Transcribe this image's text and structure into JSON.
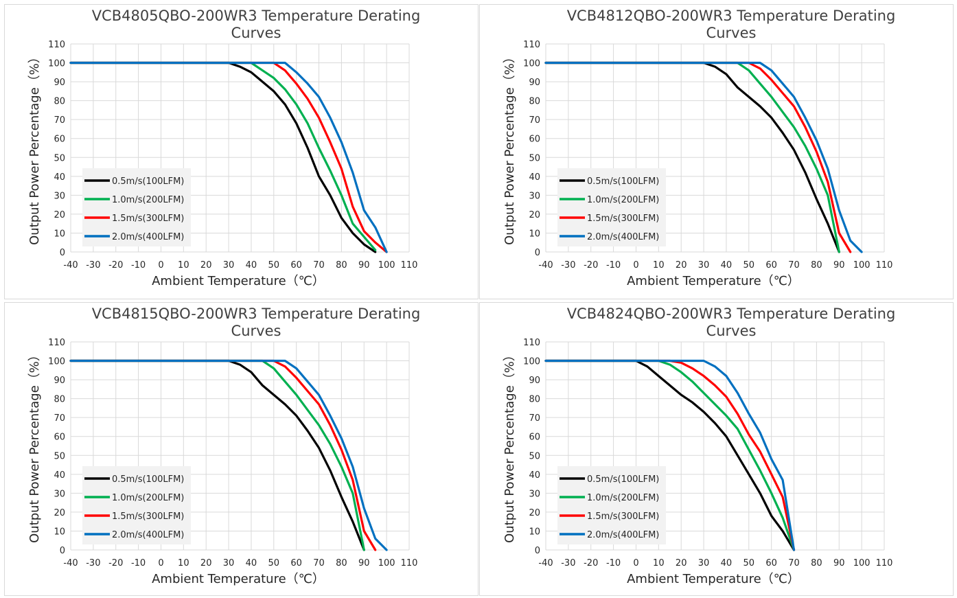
{
  "chart_data": [
    {
      "type": "line",
      "title": "VCB4805QBO-200WR3 Temperature Derating Curves",
      "xlabel": "Ambient Temperature（℃）",
      "ylabel": "Output Power Percentage（%）",
      "xlim": [
        -40,
        110
      ],
      "ylim": [
        0,
        110
      ],
      "xticks": [
        "-40",
        "-30",
        "-20",
        "-10",
        "0",
        "10",
        "20",
        "30",
        "40",
        "50",
        "60",
        "70",
        "80",
        "90",
        "100",
        "110"
      ],
      "yticks": [
        "0",
        "10",
        "20",
        "30",
        "40",
        "50",
        "60",
        "70",
        "80",
        "90",
        "100",
        "110"
      ],
      "grid": true,
      "legend_position": "bottom-left",
      "series": [
        {
          "name": "0.5m/s(100LFM)",
          "color": "#000000",
          "points": [
            [
              -40,
              100
            ],
            [
              25,
              100
            ],
            [
              30,
              100
            ],
            [
              35,
              98
            ],
            [
              40,
              95
            ],
            [
              45,
              90
            ],
            [
              50,
              85
            ],
            [
              55,
              78
            ],
            [
              60,
              68
            ],
            [
              65,
              55
            ],
            [
              70,
              40
            ],
            [
              75,
              30
            ],
            [
              80,
              18
            ],
            [
              85,
              10
            ],
            [
              90,
              4
            ],
            [
              95,
              0
            ]
          ]
        },
        {
          "name": "1.0m/s(200LFM)",
          "color": "#00b050",
          "points": [
            [
              -40,
              100
            ],
            [
              35,
              100
            ],
            [
              40,
              100
            ],
            [
              45,
              96
            ],
            [
              50,
              92
            ],
            [
              55,
              86
            ],
            [
              60,
              78
            ],
            [
              65,
              68
            ],
            [
              70,
              55
            ],
            [
              75,
              43
            ],
            [
              80,
              30
            ],
            [
              85,
              15
            ],
            [
              90,
              8
            ],
            [
              95,
              1
            ]
          ]
        },
        {
          "name": "1.5m/s(300LFM)",
          "color": "#ff0000",
          "points": [
            [
              -40,
              100
            ],
            [
              45,
              100
            ],
            [
              50,
              100
            ],
            [
              55,
              96
            ],
            [
              60,
              89
            ],
            [
              65,
              81
            ],
            [
              70,
              71
            ],
            [
              75,
              58
            ],
            [
              80,
              44
            ],
            [
              85,
              24
            ],
            [
              90,
              11
            ],
            [
              95,
              5
            ],
            [
              100,
              0
            ]
          ]
        },
        {
          "name": "2.0m/s(400LFM)",
          "color": "#0070c0",
          "points": [
            [
              -40,
              100
            ],
            [
              50,
              100
            ],
            [
              55,
              100
            ],
            [
              60,
              95
            ],
            [
              65,
              89
            ],
            [
              70,
              82
            ],
            [
              75,
              71
            ],
            [
              80,
              58
            ],
            [
              85,
              42
            ],
            [
              90,
              22
            ],
            [
              95,
              13
            ],
            [
              100,
              0
            ]
          ]
        }
      ]
    },
    {
      "type": "line",
      "title": "VCB4812QBO-200WR3 Temperature Derating Curves",
      "xlabel": "Ambient Temperature（℃）",
      "ylabel": "Output Power Percentage（%）",
      "xlim": [
        -40,
        110
      ],
      "ylim": [
        0,
        110
      ],
      "xticks": [
        "-40",
        "-30",
        "-20",
        "-10",
        "0",
        "10",
        "20",
        "30",
        "40",
        "50",
        "60",
        "70",
        "80",
        "90",
        "100",
        "110"
      ],
      "yticks": [
        "0",
        "10",
        "20",
        "30",
        "40",
        "50",
        "60",
        "70",
        "80",
        "90",
        "100",
        "110"
      ],
      "grid": true,
      "legend_position": "bottom-left",
      "series": [
        {
          "name": "0.5m/s(100LFM)",
          "color": "#000000",
          "points": [
            [
              -40,
              100
            ],
            [
              25,
              100
            ],
            [
              30,
              100
            ],
            [
              35,
              98
            ],
            [
              40,
              94
            ],
            [
              45,
              87
            ],
            [
              50,
              82
            ],
            [
              55,
              77
            ],
            [
              60,
              71
            ],
            [
              65,
              63
            ],
            [
              70,
              54
            ],
            [
              75,
              42
            ],
            [
              80,
              28
            ],
            [
              85,
              15
            ],
            [
              90,
              0
            ]
          ]
        },
        {
          "name": "1.0m/s(200LFM)",
          "color": "#00b050",
          "points": [
            [
              -40,
              100
            ],
            [
              40,
              100
            ],
            [
              45,
              100
            ],
            [
              50,
              96
            ],
            [
              55,
              89
            ],
            [
              60,
              82
            ],
            [
              65,
              74
            ],
            [
              70,
              66
            ],
            [
              75,
              56
            ],
            [
              80,
              44
            ],
            [
              85,
              30
            ],
            [
              90,
              0
            ]
          ]
        },
        {
          "name": "1.5m/s(300LFM)",
          "color": "#ff0000",
          "points": [
            [
              -40,
              100
            ],
            [
              45,
              100
            ],
            [
              50,
              100
            ],
            [
              55,
              97
            ],
            [
              60,
              91
            ],
            [
              65,
              84
            ],
            [
              70,
              77
            ],
            [
              75,
              66
            ],
            [
              80,
              53
            ],
            [
              85,
              37
            ],
            [
              90,
              10
            ],
            [
              95,
              0
            ]
          ]
        },
        {
          "name": "2.0m/s(400LFM)",
          "color": "#0070c0",
          "points": [
            [
              -40,
              100
            ],
            [
              50,
              100
            ],
            [
              55,
              100
            ],
            [
              60,
              96
            ],
            [
              65,
              89
            ],
            [
              70,
              82
            ],
            [
              75,
              71
            ],
            [
              80,
              59
            ],
            [
              85,
              44
            ],
            [
              90,
              22
            ],
            [
              95,
              6
            ],
            [
              100,
              0
            ]
          ]
        }
      ]
    },
    {
      "type": "line",
      "title": "VCB4815QBO-200WR3 Temperature Derating Curves",
      "xlabel": "Ambient Temperature（℃）",
      "ylabel": "Output Power Percentage（%）",
      "xlim": [
        -40,
        110
      ],
      "ylim": [
        0,
        110
      ],
      "xticks": [
        "-40",
        "-30",
        "-20",
        "-10",
        "0",
        "10",
        "20",
        "30",
        "40",
        "50",
        "60",
        "70",
        "80",
        "90",
        "100",
        "110"
      ],
      "yticks": [
        "0",
        "10",
        "20",
        "30",
        "40",
        "50",
        "60",
        "70",
        "80",
        "90",
        "100",
        "110"
      ],
      "grid": true,
      "legend_position": "bottom-left",
      "series": [
        {
          "name": "0.5m/s(100LFM)",
          "color": "#000000",
          "points": [
            [
              -40,
              100
            ],
            [
              25,
              100
            ],
            [
              30,
              100
            ],
            [
              35,
              98
            ],
            [
              40,
              94
            ],
            [
              45,
              87
            ],
            [
              50,
              82
            ],
            [
              55,
              77
            ],
            [
              60,
              71
            ],
            [
              65,
              63
            ],
            [
              70,
              54
            ],
            [
              75,
              42
            ],
            [
              80,
              28
            ],
            [
              85,
              15
            ],
            [
              90,
              0
            ]
          ]
        },
        {
          "name": "1.0m/s(200LFM)",
          "color": "#00b050",
          "points": [
            [
              -40,
              100
            ],
            [
              40,
              100
            ],
            [
              45,
              100
            ],
            [
              50,
              96
            ],
            [
              55,
              89
            ],
            [
              60,
              82
            ],
            [
              65,
              74
            ],
            [
              70,
              66
            ],
            [
              75,
              56
            ],
            [
              80,
              44
            ],
            [
              85,
              30
            ],
            [
              90,
              0
            ]
          ]
        },
        {
          "name": "1.5m/s(300LFM)",
          "color": "#ff0000",
          "points": [
            [
              -40,
              100
            ],
            [
              45,
              100
            ],
            [
              50,
              100
            ],
            [
              55,
              97
            ],
            [
              60,
              91
            ],
            [
              65,
              84
            ],
            [
              70,
              77
            ],
            [
              75,
              66
            ],
            [
              80,
              53
            ],
            [
              85,
              37
            ],
            [
              90,
              10
            ],
            [
              95,
              0
            ]
          ]
        },
        {
          "name": "2.0m/s(400LFM)",
          "color": "#0070c0",
          "points": [
            [
              -40,
              100
            ],
            [
              50,
              100
            ],
            [
              55,
              100
            ],
            [
              60,
              96
            ],
            [
              65,
              89
            ],
            [
              70,
              82
            ],
            [
              75,
              71
            ],
            [
              80,
              59
            ],
            [
              85,
              44
            ],
            [
              90,
              22
            ],
            [
              95,
              6
            ],
            [
              100,
              0
            ]
          ]
        }
      ]
    },
    {
      "type": "line",
      "title": "VCB4824QBO-200WR3 Temperature Derating Curves",
      "xlabel": "Ambient Temperature（℃）",
      "ylabel": "Output Power Percentage（%）",
      "xlim": [
        -40,
        110
      ],
      "ylim": [
        0,
        110
      ],
      "xticks": [
        "-40",
        "-30",
        "-20",
        "-10",
        "0",
        "10",
        "20",
        "30",
        "40",
        "50",
        "60",
        "70",
        "80",
        "90",
        "100",
        "110"
      ],
      "yticks": [
        "0",
        "10",
        "20",
        "30",
        "40",
        "50",
        "60",
        "70",
        "80",
        "90",
        "100",
        "110"
      ],
      "grid": true,
      "legend_position": "bottom-left",
      "series": [
        {
          "name": "0.5m/s(100LFM)",
          "color": "#000000",
          "points": [
            [
              -40,
              100
            ],
            [
              -10,
              100
            ],
            [
              -5,
              100
            ],
            [
              0,
              100
            ],
            [
              5,
              97
            ],
            [
              10,
              92
            ],
            [
              15,
              87
            ],
            [
              20,
              82
            ],
            [
              25,
              78
            ],
            [
              30,
              73
            ],
            [
              35,
              67
            ],
            [
              40,
              60
            ],
            [
              45,
              50
            ],
            [
              50,
              40
            ],
            [
              55,
              30
            ],
            [
              60,
              18
            ],
            [
              65,
              10
            ],
            [
              70,
              0
            ]
          ]
        },
        {
          "name": "1.0m/s(200LFM)",
          "color": "#00b050",
          "points": [
            [
              -40,
              100
            ],
            [
              5,
              100
            ],
            [
              10,
              100
            ],
            [
              15,
              98
            ],
            [
              20,
              94
            ],
            [
              25,
              89
            ],
            [
              30,
              83
            ],
            [
              35,
              77
            ],
            [
              40,
              71
            ],
            [
              45,
              64
            ],
            [
              50,
              53
            ],
            [
              55,
              42
            ],
            [
              60,
              30
            ],
            [
              65,
              17
            ],
            [
              70,
              0
            ]
          ]
        },
        {
          "name": "1.5m/s(300LFM)",
          "color": "#ff0000",
          "points": [
            [
              -40,
              100
            ],
            [
              10,
              100
            ],
            [
              15,
              100
            ],
            [
              20,
              99
            ],
            [
              25,
              96
            ],
            [
              30,
              92
            ],
            [
              35,
              87
            ],
            [
              40,
              81
            ],
            [
              45,
              72
            ],
            [
              50,
              61
            ],
            [
              55,
              52
            ],
            [
              60,
              40
            ],
            [
              65,
              28
            ],
            [
              70,
              0
            ]
          ]
        },
        {
          "name": "2.0m/s(400LFM)",
          "color": "#0070c0",
          "points": [
            [
              -40,
              100
            ],
            [
              20,
              100
            ],
            [
              25,
              100
            ],
            [
              30,
              100
            ],
            [
              35,
              97
            ],
            [
              40,
              92
            ],
            [
              45,
              83
            ],
            [
              50,
              72
            ],
            [
              55,
              62
            ],
            [
              60,
              48
            ],
            [
              65,
              37
            ],
            [
              70,
              0
            ]
          ]
        }
      ]
    }
  ]
}
